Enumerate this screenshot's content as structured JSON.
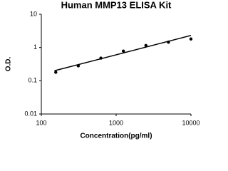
{
  "chart_data": {
    "type": "scatter",
    "title": "Human MMP13 ELISA Kit",
    "x_label": "Concentration(pg/ml)",
    "y_label": "O.D.",
    "x": [
      156,
      312,
      625,
      1250,
      2500,
      5000,
      10000
    ],
    "values": [
      0.18,
      0.28,
      0.48,
      0.78,
      1.15,
      1.45,
      1.8
    ],
    "color": "#000000",
    "trendline": {
      "x": [
        150,
        10000
      ],
      "values": [
        0.2,
        2.3
      ],
      "color": "#000000"
    },
    "xlim": [
      100,
      10000
    ],
    "xticks": [
      100,
      1000,
      10000
    ],
    "ylim": [
      0.01,
      10
    ],
    "yticks": [
      0.01,
      0.1,
      1,
      10
    ],
    "log_x": true,
    "log_y": true,
    "grid": false
  }
}
